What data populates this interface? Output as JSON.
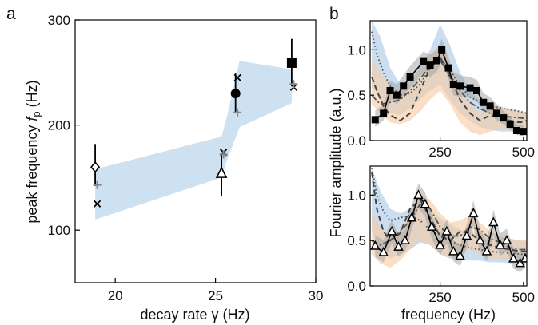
{
  "colors": {
    "band_blue": "#aecde6",
    "band_orange": "#f7c9a0",
    "band_gray": "#a0a0a0",
    "ink": "#000000",
    "gray_plus": "#888888"
  },
  "chart_data": [
    {
      "panel": "a",
      "type": "scatter",
      "xlabel": "decay rate γ (Hz)",
      "ylabel_main": "peak frequency ",
      "ylabel_symbol": "f",
      "ylabel_subscript": "p",
      "ylabel_unit": " (Hz)",
      "xlim": [
        18,
        30
      ],
      "ylim": [
        50,
        300
      ],
      "xticks": [
        20,
        25,
        30
      ],
      "yticks": [
        100,
        200,
        300
      ],
      "band": {
        "x": [
          19.0,
          25.3,
          25.6,
          26.2,
          28.8
        ],
        "lower": [
          110,
          150,
          168,
          198,
          221
        ],
        "upper": [
          158,
          189,
          210,
          261,
          253
        ]
      },
      "points": [
        {
          "marker": "diamond",
          "x": 19.0,
          "y": 160,
          "err": [
            142,
            182
          ]
        },
        {
          "marker": "triangle",
          "x": 25.3,
          "y": 154,
          "err": [
            132,
            172
          ]
        },
        {
          "marker": "circle",
          "x": 26.0,
          "y": 230,
          "err": [
            212,
            249
          ]
        },
        {
          "marker": "square",
          "x": 28.8,
          "y": 259,
          "err": [
            237,
            282
          ]
        }
      ],
      "cross_points": [
        {
          "x": 19.1,
          "y": 125
        },
        {
          "x": 25.4,
          "y": 174
        },
        {
          "x": 26.1,
          "y": 245
        },
        {
          "x": 28.9,
          "y": 236
        }
      ],
      "plus_points": [
        {
          "x": 19.1,
          "y": 143
        },
        {
          "x": 25.4,
          "y": 172
        },
        {
          "x": 26.1,
          "y": 212
        },
        {
          "x": 28.9,
          "y": 239
        }
      ]
    },
    {
      "panel": "b",
      "type": "line",
      "marker": "square",
      "ylabel": "Fourier amplitude (a.u.)",
      "xlim": [
        40,
        510
      ],
      "ylim": [
        0,
        1.32
      ],
      "xticks": [
        250,
        500
      ],
      "yticks": [
        0.0,
        0.5,
        1.0
      ],
      "ytick_labels": [
        "0.0",
        "0.5",
        "1.0"
      ],
      "x": [
        55,
        80,
        100,
        120,
        140,
        160,
        200,
        220,
        240,
        255,
        275,
        290,
        310,
        340,
        360,
        380,
        400,
        420,
        440,
        460,
        480,
        500
      ],
      "series_main": [
        0.23,
        0.3,
        0.55,
        0.5,
        0.6,
        0.7,
        0.87,
        0.83,
        0.88,
        1.0,
        0.8,
        0.62,
        0.6,
        0.58,
        0.55,
        0.42,
        0.38,
        0.3,
        0.25,
        0.18,
        0.11,
        0.1
      ],
      "band_gray_low": [
        0.15,
        0.22,
        0.45,
        0.4,
        0.5,
        0.58,
        0.75,
        0.7,
        0.75,
        0.88,
        0.68,
        0.5,
        0.48,
        0.47,
        0.43,
        0.33,
        0.3,
        0.22,
        0.18,
        0.12,
        0.06,
        0.05
      ],
      "band_gray_high": [
        0.33,
        0.4,
        0.66,
        0.62,
        0.72,
        0.82,
        0.98,
        0.95,
        1.0,
        1.12,
        0.92,
        0.75,
        0.72,
        0.7,
        0.67,
        0.52,
        0.48,
        0.4,
        0.33,
        0.26,
        0.18,
        0.16
      ],
      "band_blue_x": [
        45,
        70,
        100,
        130,
        160,
        190,
        220,
        250,
        280,
        310,
        340,
        370,
        400,
        430,
        460,
        490,
        510
      ],
      "band_blue_low": [
        0.6,
        0.45,
        0.3,
        0.28,
        0.35,
        0.45,
        0.55,
        0.62,
        0.45,
        0.3,
        0.22,
        0.15,
        0.12,
        0.1,
        0.1,
        0.1,
        0.1
      ],
      "band_blue_high": [
        1.32,
        1.15,
        0.8,
        0.62,
        0.65,
        0.8,
        1.0,
        1.28,
        1.05,
        0.75,
        0.55,
        0.45,
        0.4,
        0.36,
        0.35,
        0.32,
        0.3
      ],
      "band_orange_x": [
        45,
        70,
        100,
        130,
        160,
        190,
        220,
        250,
        280,
        310,
        340,
        370,
        400,
        430,
        460,
        490,
        510
      ],
      "band_orange_low": [
        0.4,
        0.3,
        0.2,
        0.18,
        0.22,
        0.32,
        0.45,
        0.55,
        0.4,
        0.2,
        0.1,
        0.06,
        0.1,
        0.12,
        0.14,
        0.12,
        0.12
      ],
      "band_orange_high": [
        0.9,
        0.75,
        0.6,
        0.55,
        0.6,
        0.75,
        0.95,
        1.05,
        0.85,
        0.55,
        0.4,
        0.3,
        0.35,
        0.38,
        0.35,
        0.32,
        0.3
      ],
      "dotted_x": [
        45,
        60,
        80,
        100,
        130,
        160,
        190,
        220,
        250,
        280,
        310,
        340,
        370,
        400,
        430,
        460,
        490,
        510
      ],
      "dotted": [
        1.2,
        0.95,
        0.75,
        0.6,
        0.5,
        0.52,
        0.62,
        0.8,
        0.9,
        0.78,
        0.6,
        0.48,
        0.42,
        0.38,
        0.36,
        0.34,
        0.32,
        0.3
      ],
      "dashed_x": [
        45,
        60,
        80,
        100,
        130,
        160,
        190,
        220,
        250,
        280,
        310,
        340,
        370,
        400,
        430,
        460,
        490,
        510
      ],
      "dashed": [
        0.7,
        0.55,
        0.38,
        0.28,
        0.22,
        0.3,
        0.55,
        0.8,
        0.92,
        0.7,
        0.45,
        0.3,
        0.22,
        0.28,
        0.25,
        0.22,
        0.2,
        0.22
      ],
      "dashdot_x": [
        45,
        70,
        100,
        130,
        160,
        190,
        220,
        250,
        280,
        310,
        340,
        370,
        400,
        430,
        460,
        490,
        510
      ],
      "dashdot": [
        0.5,
        0.4,
        0.42,
        0.45,
        0.55,
        0.68,
        0.82,
        0.88,
        0.72,
        0.55,
        0.42,
        0.35,
        0.3,
        0.28,
        0.26,
        0.25,
        0.24
      ]
    },
    {
      "panel": "b-lower",
      "type": "line",
      "marker": "triangle",
      "xlabel": "frequency (Hz)",
      "xlim": [
        40,
        510
      ],
      "ylim": [
        0,
        1.32
      ],
      "xticks": [
        250,
        500
      ],
      "yticks": [
        0.0,
        0.5,
        1.0
      ],
      "ytick_labels": [
        "0.0",
        "0.5",
        "1.0"
      ],
      "x": [
        55,
        80,
        105,
        125,
        145,
        165,
        185,
        205,
        225,
        250,
        270,
        290,
        310,
        330,
        350,
        370,
        390,
        410,
        430,
        450,
        470,
        490,
        505
      ],
      "series_main": [
        0.44,
        0.37,
        0.6,
        0.43,
        0.5,
        0.75,
        1.0,
        0.9,
        0.65,
        0.45,
        0.6,
        0.38,
        0.33,
        0.55,
        0.8,
        0.5,
        0.38,
        0.7,
        0.45,
        0.5,
        0.3,
        0.25,
        0.3
      ],
      "band_gray_low": [
        0.32,
        0.26,
        0.47,
        0.32,
        0.38,
        0.62,
        0.86,
        0.76,
        0.52,
        0.34,
        0.47,
        0.27,
        0.22,
        0.42,
        0.66,
        0.38,
        0.27,
        0.56,
        0.33,
        0.38,
        0.19,
        0.15,
        0.2
      ],
      "band_gray_high": [
        0.56,
        0.5,
        0.74,
        0.55,
        0.63,
        0.89,
        1.13,
        1.03,
        0.78,
        0.57,
        0.73,
        0.5,
        0.45,
        0.68,
        0.94,
        0.63,
        0.5,
        0.84,
        0.58,
        0.63,
        0.42,
        0.36,
        0.42
      ],
      "band_blue_x": [
        45,
        70,
        100,
        130,
        160,
        190,
        220,
        250,
        280,
        310,
        340,
        370,
        400,
        430,
        460,
        490,
        510
      ],
      "band_blue_low": [
        0.6,
        0.4,
        0.3,
        0.35,
        0.4,
        0.48,
        0.45,
        0.35,
        0.3,
        0.3,
        0.28,
        0.28,
        0.26,
        0.26,
        0.25,
        0.25,
        0.25
      ],
      "band_blue_high": [
        1.3,
        1.05,
        0.85,
        0.8,
        0.85,
        0.9,
        0.85,
        0.75,
        0.68,
        0.62,
        0.6,
        0.58,
        0.55,
        0.53,
        0.52,
        0.5,
        0.5
      ],
      "band_orange_x": [
        45,
        70,
        100,
        130,
        160,
        190,
        220,
        250,
        280,
        310,
        340,
        370,
        400,
        430,
        460,
        490,
        510
      ],
      "band_orange_low": [
        0.35,
        0.25,
        0.2,
        0.28,
        0.4,
        0.5,
        0.45,
        0.35,
        0.3,
        0.35,
        0.4,
        0.35,
        0.3,
        0.3,
        0.28,
        0.27,
        0.27
      ],
      "band_orange_high": [
        0.8,
        0.65,
        0.55,
        0.62,
        0.8,
        1.0,
        0.95,
        0.8,
        0.7,
        0.72,
        0.78,
        0.7,
        0.6,
        0.55,
        0.52,
        0.5,
        0.5
      ],
      "dotted_x": [
        45,
        60,
        80,
        100,
        130,
        160,
        190,
        220,
        250,
        280,
        310,
        340,
        370,
        400,
        430,
        460,
        490,
        510
      ],
      "dotted": [
        1.3,
        1.0,
        0.82,
        0.72,
        0.75,
        0.78,
        0.72,
        0.62,
        0.56,
        0.5,
        0.45,
        0.42,
        0.4,
        0.38,
        0.37,
        0.36,
        0.35,
        0.35
      ],
      "dashed_x": [
        45,
        60,
        80,
        100,
        130,
        160,
        190,
        220,
        250,
        280,
        310,
        340,
        370,
        400,
        430,
        460,
        490,
        510
      ],
      "dashed": [
        1.25,
        0.85,
        0.6,
        0.5,
        0.58,
        0.85,
        0.95,
        0.75,
        0.55,
        0.5,
        0.6,
        0.58,
        0.5,
        0.45,
        0.42,
        0.4,
        0.38,
        0.38
      ],
      "dashdot_x": [
        45,
        70,
        100,
        130,
        160,
        190,
        220,
        250,
        280,
        310,
        340,
        370,
        400,
        430,
        460,
        490,
        510
      ],
      "dashdot": [
        0.5,
        0.45,
        0.5,
        0.6,
        0.72,
        0.9,
        0.85,
        0.65,
        0.55,
        0.55,
        0.65,
        0.62,
        0.52,
        0.48,
        0.42,
        0.4,
        0.4
      ]
    }
  ]
}
